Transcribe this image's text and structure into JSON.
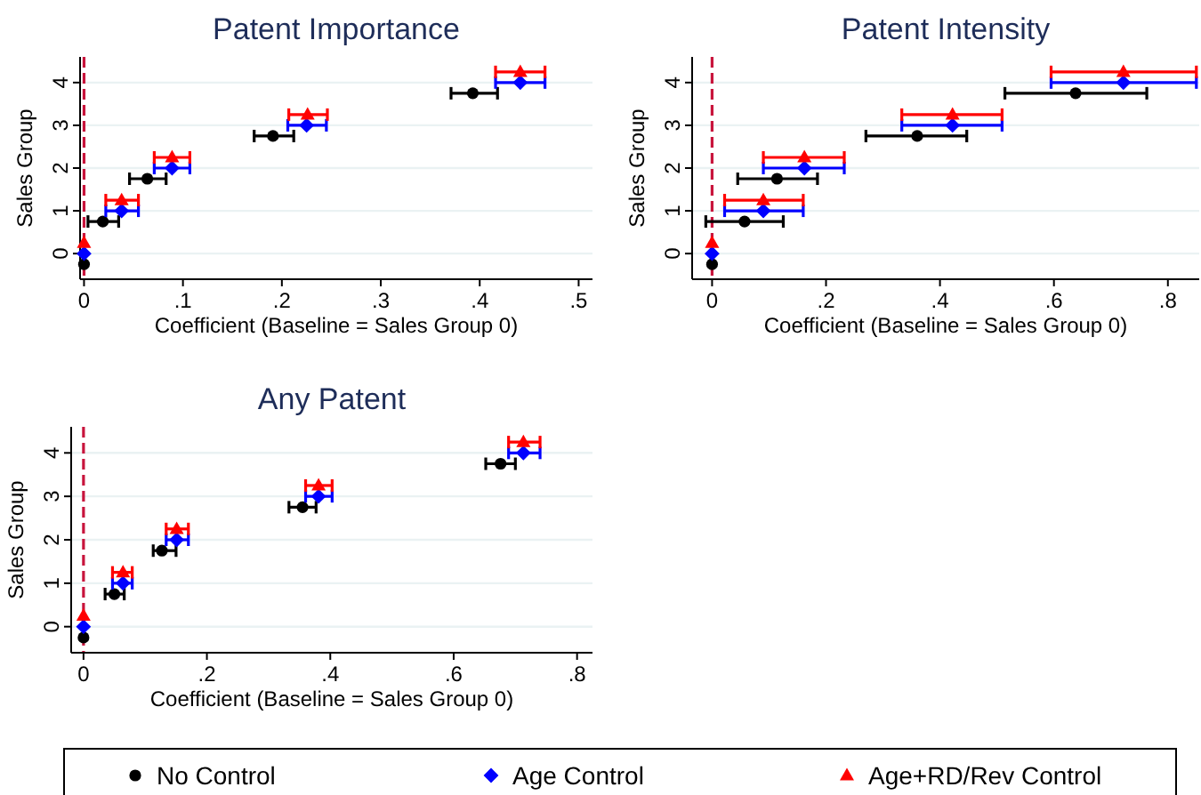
{
  "chart_data": [
    {
      "type": "scatter",
      "title": "Patent Importance",
      "xlabel": "Coefficient (Baseline = Sales Group 0)",
      "ylabel": "Sales Group",
      "xlim": [
        -0.004,
        0.514
      ],
      "xticks": [
        {
          "value": 0,
          "label": "0"
        },
        {
          "value": 0.1,
          "label": ".1"
        },
        {
          "value": 0.2,
          "label": ".2"
        },
        {
          "value": 0.3,
          "label": ".3"
        },
        {
          "value": 0.4,
          "label": ".4"
        },
        {
          "value": 0.5,
          "label": ".5"
        }
      ],
      "ylim": [
        -0.6,
        4.6
      ],
      "yticks": [
        0,
        1,
        2,
        3,
        4
      ],
      "grid": "y",
      "legend": "bottom",
      "ref_lines": [
        {
          "axis": "x",
          "value": 0,
          "color": "#c8143c",
          "line_style": "dashed"
        }
      ],
      "series": [
        {
          "name": "No Control",
          "color": "#000000",
          "marker": "circle",
          "x": [
            0,
            0.019,
            0.064,
            0.191,
            0.393
          ],
          "values": [
            -0.25,
            0.75,
            1.75,
            2.75,
            3.75
          ],
          "xerrors": [
            null,
            [
              0.004,
              0.035
            ],
            [
              0.046,
              0.083
            ],
            [
              0.172,
              0.212
            ],
            [
              0.371,
              0.418
            ]
          ]
        },
        {
          "name": "Age Control",
          "color": "#0000ff",
          "marker": "diamond",
          "x": [
            0,
            0.038,
            0.089,
            0.225,
            0.441
          ],
          "values": [
            0,
            1,
            2,
            3,
            4
          ],
          "xerrors": [
            null,
            [
              0.022,
              0.055
            ],
            [
              0.071,
              0.107
            ],
            [
              0.206,
              0.245
            ],
            [
              0.416,
              0.466
            ]
          ]
        },
        {
          "name": "Age+RD/Rev Control",
          "color": "#ff0000",
          "marker": "triangle",
          "x": [
            0,
            0.038,
            0.089,
            0.226,
            0.441
          ],
          "values": [
            0.25,
            1.25,
            2.25,
            3.25,
            4.25
          ],
          "xerrors": [
            null,
            [
              0.022,
              0.055
            ],
            [
              0.071,
              0.107
            ],
            [
              0.207,
              0.246
            ],
            [
              0.416,
              0.466
            ]
          ]
        }
      ]
    },
    {
      "type": "scatter",
      "title": "Patent Intensity",
      "xlabel": "Coefficient (Baseline = Sales Group 0)",
      "ylabel": "Sales Group",
      "xlim": [
        -0.035,
        0.855
      ],
      "xticks": [
        {
          "value": 0,
          "label": "0"
        },
        {
          "value": 0.2,
          "label": ".2"
        },
        {
          "value": 0.4,
          "label": ".4"
        },
        {
          "value": 0.6,
          "label": ".6"
        },
        {
          "value": 0.8,
          "label": ".8"
        }
      ],
      "ylim": [
        -0.6,
        4.6
      ],
      "yticks": [
        0,
        1,
        2,
        3,
        4
      ],
      "grid": "y",
      "ref_lines": [
        {
          "axis": "x",
          "value": 0,
          "color": "#c8143c",
          "line_style": "dashed"
        }
      ],
      "series": [
        {
          "color": "#000000",
          "marker": "circle",
          "x": [
            0,
            0.057,
            0.114,
            0.36,
            0.638
          ],
          "values": [
            -0.25,
            0.75,
            1.75,
            2.75,
            3.75
          ],
          "xerrors": [
            null,
            [
              -0.011,
              0.125
            ],
            [
              0.045,
              0.185
            ],
            [
              0.27,
              0.447
            ],
            [
              0.514,
              0.763
            ]
          ]
        },
        {
          "color": "#0000ff",
          "marker": "diamond",
          "x": [
            0,
            0.09,
            0.162,
            0.422,
            0.722
          ],
          "values": [
            0,
            1,
            2,
            3,
            4
          ],
          "xerrors": [
            null,
            [
              0.022,
              0.16
            ],
            [
              0.09,
              0.232
            ],
            [
              0.333,
              0.509
            ],
            [
              0.595,
              0.85
            ]
          ]
        },
        {
          "color": "#ff0000",
          "marker": "triangle",
          "x": [
            0,
            0.09,
            0.162,
            0.422,
            0.722
          ],
          "values": [
            0.25,
            1.25,
            2.25,
            3.25,
            4.25
          ],
          "xerrors": [
            null,
            [
              0.022,
              0.16
            ],
            [
              0.09,
              0.232
            ],
            [
              0.333,
              0.509
            ],
            [
              0.595,
              0.85
            ]
          ]
        }
      ]
    },
    {
      "type": "scatter",
      "title": "Any Patent",
      "xlabel": "Coefficient (Baseline = Sales Group 0)",
      "ylabel": "Sales Group",
      "xlim": [
        -0.02,
        0.825
      ],
      "xticks": [
        {
          "value": 0,
          "label": "0"
        },
        {
          "value": 0.2,
          "label": ".2"
        },
        {
          "value": 0.4,
          "label": ".4"
        },
        {
          "value": 0.6,
          "label": ".6"
        },
        {
          "value": 0.8,
          "label": ".8"
        }
      ],
      "ylim": [
        -0.6,
        4.6
      ],
      "yticks": [
        0,
        1,
        2,
        3,
        4
      ],
      "grid": "y",
      "ref_lines": [
        {
          "axis": "x",
          "value": 0,
          "color": "#c8143c",
          "line_style": "dashed"
        }
      ],
      "series": [
        {
          "color": "#000000",
          "marker": "circle",
          "x": [
            0,
            0.05,
            0.127,
            0.355,
            0.676
          ],
          "values": [
            -0.25,
            0.75,
            1.75,
            2.75,
            3.75
          ],
          "xerrors": [
            null,
            [
              0.035,
              0.066
            ],
            [
              0.113,
              0.15
            ],
            [
              0.333,
              0.377
            ],
            [
              0.652,
              0.7
            ]
          ]
        },
        {
          "color": "#0000ff",
          "marker": "diamond",
          "x": [
            0,
            0.064,
            0.151,
            0.381,
            0.713
          ],
          "values": [
            0,
            1,
            2,
            3,
            4
          ],
          "xerrors": [
            null,
            [
              0.047,
              0.079
            ],
            [
              0.134,
              0.17
            ],
            [
              0.36,
              0.403
            ],
            [
              0.689,
              0.74
            ]
          ]
        },
        {
          "color": "#ff0000",
          "marker": "triangle",
          "x": [
            0,
            0.064,
            0.151,
            0.381,
            0.713
          ],
          "values": [
            0.25,
            1.25,
            2.25,
            3.25,
            4.25
          ],
          "xerrors": [
            null,
            [
              0.047,
              0.079
            ],
            [
              0.134,
              0.17
            ],
            [
              0.36,
              0.403
            ],
            [
              0.689,
              0.74
            ]
          ]
        }
      ]
    }
  ]
}
